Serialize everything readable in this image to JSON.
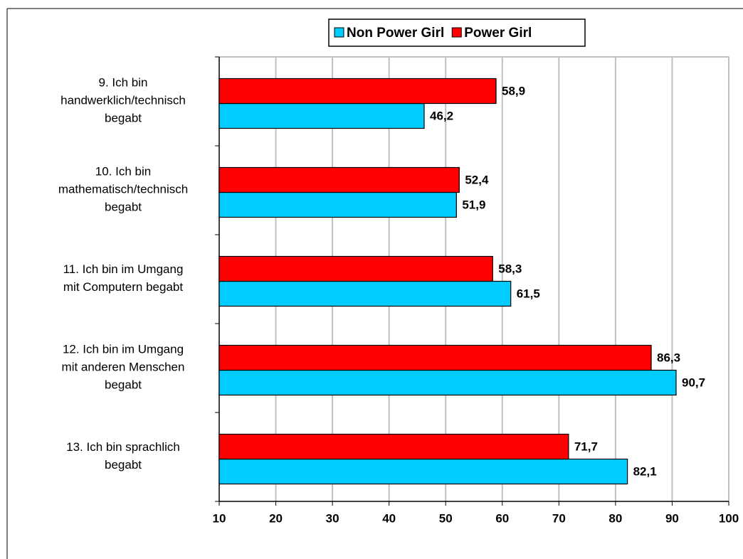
{
  "chart_data": {
    "type": "hbar",
    "categories": [
      "9. Ich bin\nhandwerklich/technisch\nbegabt",
      "10. Ich bin\nmathematisch/technisch\nbegabt",
      "11. Ich bin im Umgang\nmit Computern begabt",
      "12. Ich bin im Umgang\nmit anderen Menschen\nbegabt",
      "13. Ich bin sprachlich\nbegabt"
    ],
    "series": [
      {
        "name": "Non Power Girl",
        "color": "#00ccff",
        "values": [
          46.2,
          51.9,
          61.5,
          90.7,
          82.1
        ],
        "value_labels": [
          "46,2",
          "51,9",
          "61,5",
          "90,7",
          "82,1"
        ]
      },
      {
        "name": "Power Girl",
        "color": "#ff0000",
        "values": [
          58.9,
          52.4,
          58.3,
          86.3,
          71.7
        ],
        "value_labels": [
          "58,9",
          "52,4",
          "58,3",
          "86,3",
          "71,7"
        ]
      }
    ],
    "xlim": [
      10,
      100
    ],
    "xticks": [
      10,
      20,
      30,
      40,
      50,
      60,
      70,
      80,
      90,
      100
    ],
    "grid": true,
    "legend": "top"
  }
}
